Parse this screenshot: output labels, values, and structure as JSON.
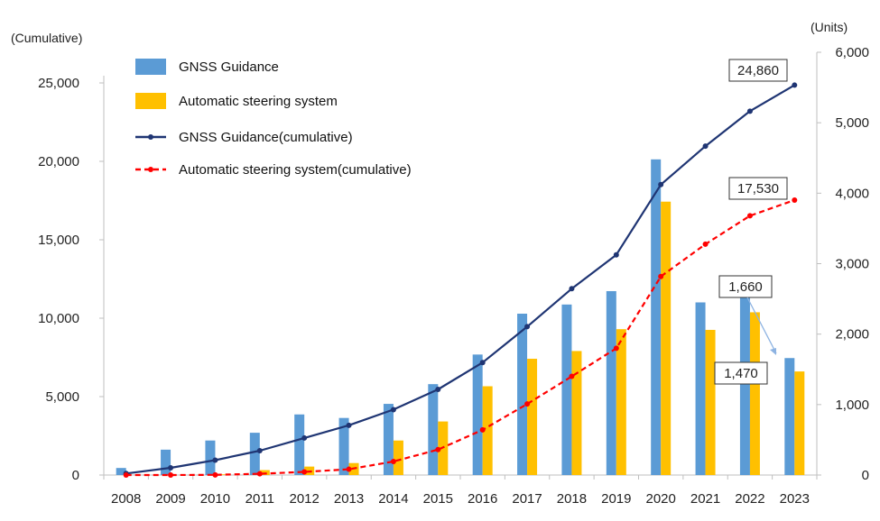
{
  "chart_data": {
    "type": "bar",
    "categories": [
      "2008",
      "2009",
      "2010",
      "2011",
      "2012",
      "2013",
      "2014",
      "2015",
      "2016",
      "2017",
      "2018",
      "2019",
      "2020",
      "2021",
      "2022",
      "2023"
    ],
    "left_axis": {
      "label": "(Cumulative)",
      "range": [
        0,
        25000
      ],
      "ticks": [
        "0",
        "5,000",
        "10,000",
        "15,000",
        "20,000",
        "25,000"
      ]
    },
    "right_axis": {
      "label": "(Units)",
      "range": [
        0,
        6000
      ],
      "ticks": [
        "0",
        "1,000",
        "2,000",
        "3,000",
        "4,000",
        "5,000",
        "6,000"
      ]
    },
    "grid": false,
    "legend_position": "top-left",
    "series": [
      {
        "name": "GNSS Guidance",
        "kind": "bar",
        "axis": "right",
        "color": "#5b9bd5",
        "values": [
          100,
          360,
          490,
          600,
          860,
          810,
          1010,
          1290,
          1710,
          2290,
          2420,
          2610,
          4480,
          2450,
          2580,
          1660
        ]
      },
      {
        "name": "Automatic steering system",
        "kind": "bar",
        "axis": "right",
        "color": "#ffc000",
        "values": [
          0,
          0,
          10,
          70,
          120,
          170,
          490,
          760,
          1260,
          1650,
          1760,
          2070,
          3880,
          2060,
          2310,
          1470
        ]
      },
      {
        "name": "GNSS Guidance(cumulative)",
        "kind": "line",
        "axis": "left",
        "color": "#1f3573",
        "style": "solid",
        "values": [
          100,
          460,
          950,
          1550,
          2360,
          3170,
          4170,
          5460,
          7170,
          9460,
          11880,
          14040,
          18520,
          20970,
          23200,
          24860
        ]
      },
      {
        "name": "Automatic steering system(cumulative)",
        "kind": "line",
        "axis": "left",
        "color": "#ff0000",
        "style": "dashed",
        "values": [
          0,
          0,
          10,
          80,
          200,
          370,
          860,
          1620,
          2880,
          4530,
          6290,
          8080,
          12660,
          14720,
          16530,
          17530
        ]
      }
    ],
    "annotations": [
      {
        "text": "24,860",
        "series": "GNSS Guidance(cumulative)",
        "year": "2023"
      },
      {
        "text": "17,530",
        "series": "Automatic steering system(cumulative)",
        "year": "2023"
      },
      {
        "text": "1,660",
        "series": "GNSS Guidance",
        "year": "2023",
        "arrow": true
      },
      {
        "text": "1,470",
        "series": "Automatic steering system",
        "year": "2023"
      }
    ]
  }
}
